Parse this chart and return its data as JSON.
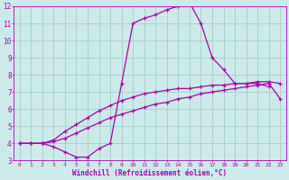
{
  "line1_x": [
    0,
    1,
    2,
    3,
    4,
    5,
    6,
    7,
    8,
    9,
    10,
    11,
    12,
    13,
    14,
    15,
    16,
    17,
    18,
    19,
    20,
    21,
    22
  ],
  "line1_y": [
    4.0,
    4.0,
    4.0,
    3.8,
    3.5,
    3.2,
    3.2,
    3.7,
    4.0,
    7.5,
    11.0,
    11.3,
    11.5,
    11.8,
    12.0,
    12.2,
    11.0,
    9.0,
    8.3,
    7.5,
    7.5,
    7.5,
    7.3
  ],
  "line2_x": [
    0,
    1,
    2,
    3,
    4,
    5,
    6,
    7,
    8,
    9,
    10,
    11,
    12,
    13,
    14,
    15,
    16,
    17,
    18,
    19,
    20,
    21,
    22,
    23
  ],
  "line2_y": [
    4.0,
    4.0,
    4.0,
    4.1,
    4.3,
    4.6,
    4.9,
    5.2,
    5.5,
    5.7,
    5.9,
    6.1,
    6.3,
    6.4,
    6.6,
    6.7,
    6.9,
    7.0,
    7.1,
    7.2,
    7.3,
    7.4,
    7.5,
    6.6
  ],
  "line3_x": [
    0,
    1,
    2,
    3,
    4,
    5,
    6,
    7,
    8,
    9,
    10,
    11,
    12,
    13,
    14,
    15,
    16,
    17,
    18,
    19,
    20,
    21,
    22,
    23
  ],
  "line3_y": [
    4.0,
    4.0,
    4.0,
    4.2,
    4.7,
    5.1,
    5.5,
    5.9,
    6.2,
    6.5,
    6.7,
    6.9,
    7.0,
    7.1,
    7.2,
    7.2,
    7.3,
    7.4,
    7.4,
    7.5,
    7.5,
    7.6,
    7.6,
    7.5
  ],
  "color": "#aa00aa",
  "bg_color": "#cceaea",
  "grid_color": "#aacccc",
  "xlabel": "Windchill (Refroidissement éolien,°C)",
  "xlim": [
    -0.5,
    23.5
  ],
  "ylim": [
    3,
    12
  ],
  "xticks": [
    0,
    1,
    2,
    3,
    4,
    5,
    6,
    7,
    8,
    9,
    10,
    11,
    12,
    13,
    14,
    15,
    16,
    17,
    18,
    19,
    20,
    21,
    22,
    23
  ],
  "yticks": [
    3,
    4,
    5,
    6,
    7,
    8,
    9,
    10,
    11,
    12
  ]
}
